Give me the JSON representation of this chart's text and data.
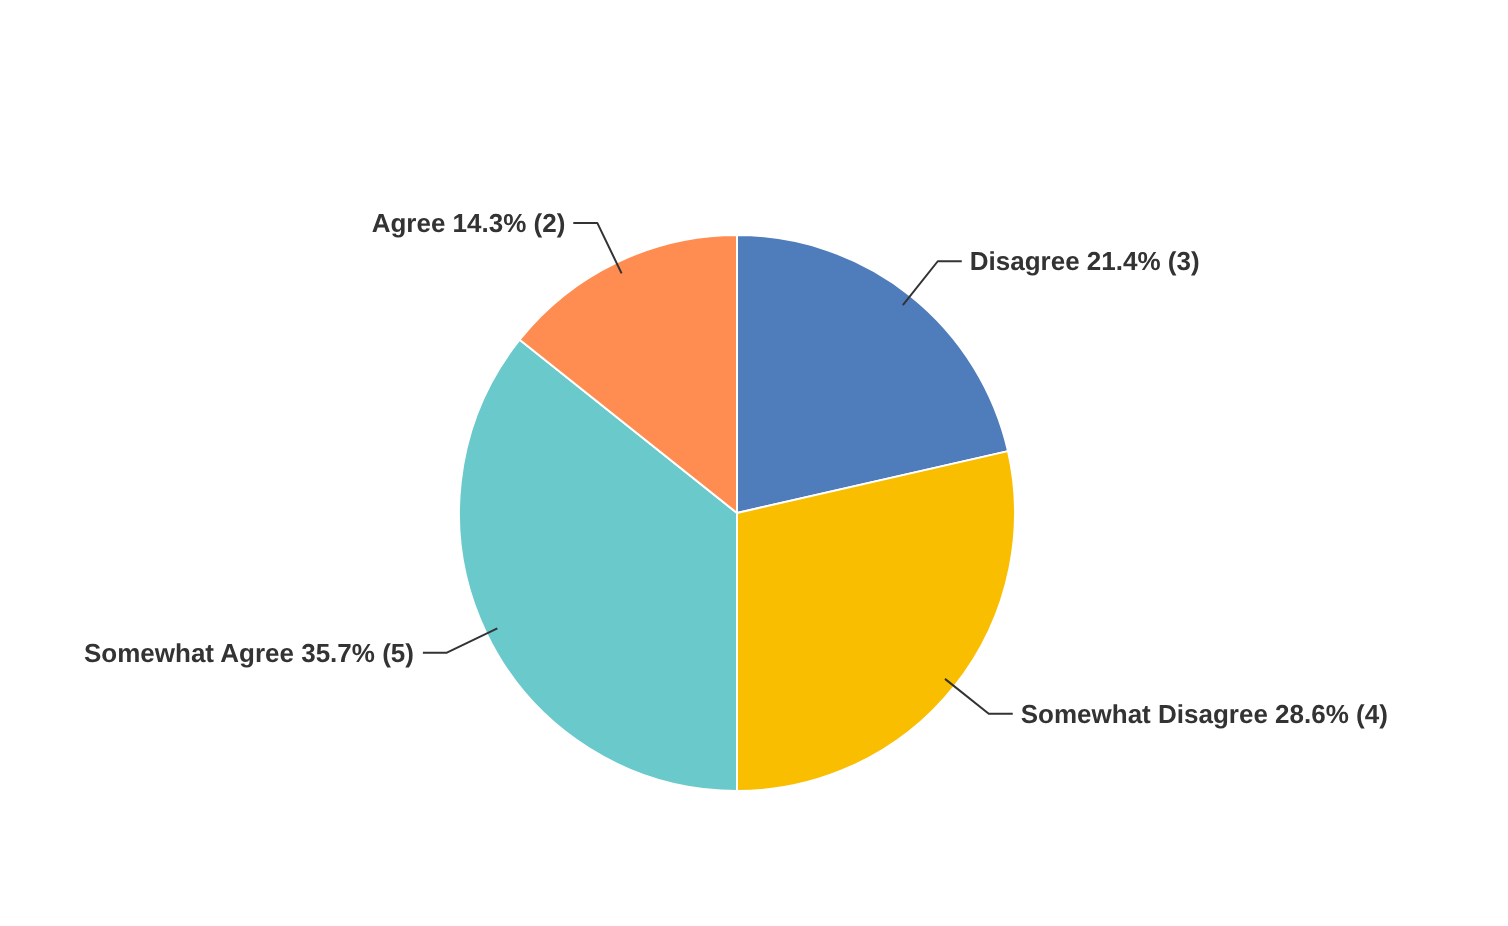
{
  "chart_data": {
    "type": "pie",
    "categories": [
      "Disagree",
      "Somewhat Disagree",
      "Somewhat Agree",
      "Agree"
    ],
    "values": [
      3,
      4,
      5,
      2
    ],
    "value_labels": [
      "21.4% (3)",
      "28.6% (4)",
      "35.7% (5)",
      "14.3% (2)"
    ],
    "colors": [
      "#4f7cba",
      "#f9be00",
      "#6ac9cb",
      "#ff8c51"
    ]
  }
}
